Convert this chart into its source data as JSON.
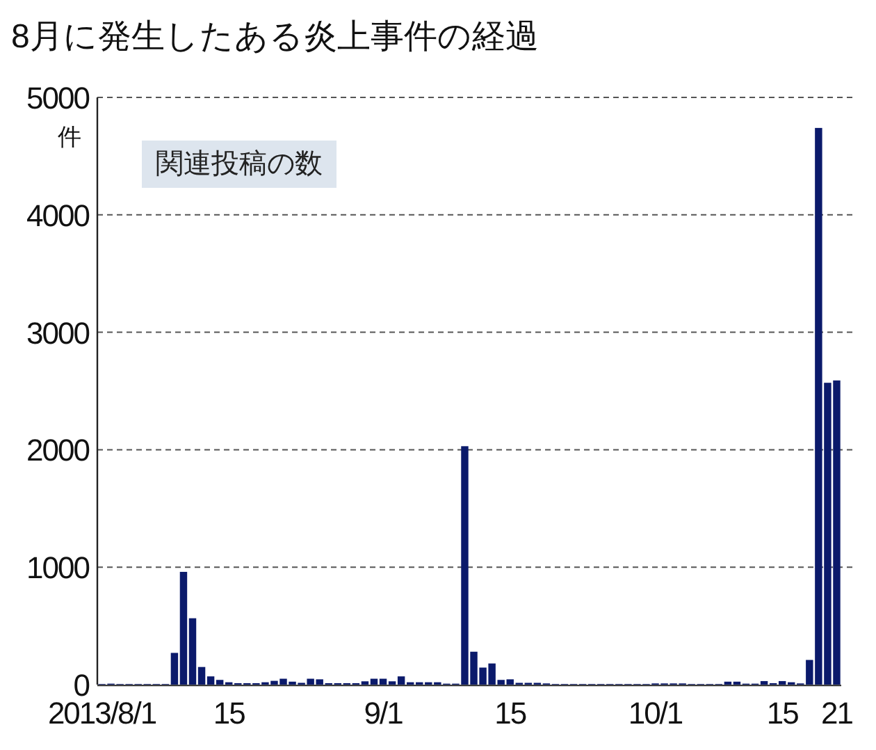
{
  "chart_data": {
    "type": "bar",
    "title": "8月に発生したある炎上事件の経過",
    "ylabel": "件",
    "annotations": [
      "関連投稿の数"
    ],
    "color": "#0b1a6b",
    "grid": "y",
    "x": [
      "2013-08-01",
      "2013-08-02",
      "2013-08-03",
      "2013-08-04",
      "2013-08-05",
      "2013-08-06",
      "2013-08-07",
      "2013-08-08",
      "2013-08-09",
      "2013-08-10",
      "2013-08-11",
      "2013-08-12",
      "2013-08-13",
      "2013-08-14",
      "2013-08-15",
      "2013-08-16",
      "2013-08-17",
      "2013-08-18",
      "2013-08-19",
      "2013-08-20",
      "2013-08-21",
      "2013-08-22",
      "2013-08-23",
      "2013-08-24",
      "2013-08-25",
      "2013-08-26",
      "2013-08-27",
      "2013-08-28",
      "2013-08-29",
      "2013-08-30",
      "2013-08-31",
      "2013-09-01",
      "2013-09-02",
      "2013-09-03",
      "2013-09-04",
      "2013-09-05",
      "2013-09-06",
      "2013-09-07",
      "2013-09-08",
      "2013-09-09",
      "2013-09-10",
      "2013-09-11",
      "2013-09-12",
      "2013-09-13",
      "2013-09-14",
      "2013-09-15",
      "2013-09-16",
      "2013-09-17",
      "2013-09-18",
      "2013-09-19",
      "2013-09-20",
      "2013-09-21",
      "2013-09-22",
      "2013-09-23",
      "2013-09-24",
      "2013-09-25",
      "2013-09-26",
      "2013-09-27",
      "2013-09-28",
      "2013-09-29",
      "2013-09-30",
      "2013-10-01",
      "2013-10-02",
      "2013-10-03",
      "2013-10-04",
      "2013-10-05",
      "2013-10-06",
      "2013-10-07",
      "2013-10-08",
      "2013-10-09",
      "2013-10-10",
      "2013-10-11",
      "2013-10-12",
      "2013-10-13",
      "2013-10-14",
      "2013-10-15",
      "2013-10-16",
      "2013-10-17",
      "2013-10-18",
      "2013-10-19",
      "2013-10-20",
      "2013-10-21"
    ],
    "values": [
      5,
      8,
      5,
      5,
      5,
      5,
      5,
      5,
      270,
      960,
      565,
      150,
      70,
      40,
      20,
      12,
      12,
      12,
      20,
      32,
      50,
      25,
      15,
      50,
      45,
      12,
      12,
      12,
      12,
      28,
      50,
      50,
      28,
      70,
      20,
      20,
      20,
      20,
      8,
      8,
      2030,
      280,
      145,
      180,
      40,
      45,
      15,
      15,
      15,
      10,
      5,
      5,
      5,
      5,
      5,
      5,
      5,
      5,
      5,
      5,
      5,
      10,
      10,
      10,
      10,
      5,
      5,
      5,
      5,
      25,
      25,
      8,
      8,
      30,
      12,
      30,
      20,
      10,
      210,
      4740,
      2570,
      2590
    ],
    "xlim": [
      "2013-07-31T12:00",
      "2013-10-21T12:00"
    ],
    "xticks": [
      {
        "value": "2013-08-01",
        "label": "2013/8/1"
      },
      {
        "value": "2013-08-15",
        "label": "15"
      },
      {
        "value": "2013-09-01",
        "label": "9/1"
      },
      {
        "value": "2013-09-15",
        "label": "15"
      },
      {
        "value": "2013-10-01",
        "label": "10/1"
      },
      {
        "value": "2013-10-15",
        "label": "15"
      },
      {
        "value": "2013-10-21",
        "label": "21"
      }
    ],
    "ylim": [
      0,
      5000
    ],
    "yticks": [
      0,
      1000,
      2000,
      3000,
      4000,
      5000
    ]
  }
}
